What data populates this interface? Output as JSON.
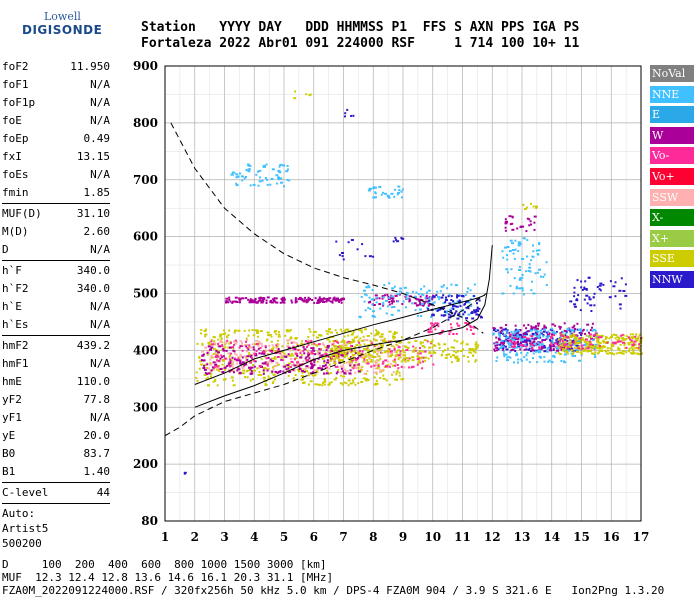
{
  "logo": {
    "line1": "Lowell",
    "line2": "DIGISONDE"
  },
  "header": {
    "row1": "Station   YYYY DAY   DDD HHMMSS P1  FFS S AXN PPS IGA PS",
    "row2": "Fortaleza 2022 Abr01 091 224000 RSF     1 714 100 10+ 11"
  },
  "params": {
    "group1": [
      {
        "key": "foF2",
        "value": "11.950"
      },
      {
        "key": "foF1",
        "value": "N/A"
      },
      {
        "key": "foF1p",
        "value": "N/A"
      },
      {
        "key": "foE",
        "value": "N/A"
      },
      {
        "key": "foEp",
        "value": "0.49"
      },
      {
        "key": "fxI",
        "value": "13.15"
      },
      {
        "key": "foEs",
        "value": "N/A"
      },
      {
        "key": "fmin",
        "value": "1.85"
      }
    ],
    "group2": [
      {
        "key": "MUF(D)",
        "value": "31.10"
      },
      {
        "key": "M(D)",
        "value": "2.60"
      },
      {
        "key": "D",
        "value": "N/A"
      }
    ],
    "group3": [
      {
        "key": "h`F",
        "value": "340.0"
      },
      {
        "key": "h`F2",
        "value": "340.0"
      },
      {
        "key": "h`E",
        "value": "N/A"
      },
      {
        "key": "h`Es",
        "value": "N/A"
      }
    ],
    "group4": [
      {
        "key": "hmF2",
        "value": "439.2"
      },
      {
        "key": "hmF1",
        "value": "N/A"
      },
      {
        "key": "hmE",
        "value": "110.0"
      },
      {
        "key": "yF2",
        "value": "77.8"
      },
      {
        "key": "yF1",
        "value": "N/A"
      },
      {
        "key": "yE",
        "value": "20.0"
      },
      {
        "key": "B0",
        "value": "83.7"
      },
      {
        "key": "B1",
        "value": "1.40"
      }
    ],
    "group5": [
      {
        "key": "C-level",
        "value": "44"
      }
    ],
    "auto": [
      "Auto:",
      "Artist5",
      "500200"
    ]
  },
  "legend": [
    {
      "label": "NoVal",
      "color": "#808080"
    },
    {
      "label": "NNE",
      "color": "#40c0ff"
    },
    {
      "label": "E",
      "color": "#2aa8e8"
    },
    {
      "label": "W",
      "color": "#aa0099"
    },
    {
      "label": "Vo-",
      "color": "#ff2a9a"
    },
    {
      "label": "Vo+",
      "color": "#ff0033"
    },
    {
      "label": "SSW",
      "color": "#ffb0b0"
    },
    {
      "label": "X-",
      "color": "#008800"
    },
    {
      "label": "X+",
      "color": "#99cc44"
    },
    {
      "label": "SSE",
      "color": "#cccc00"
    },
    {
      "label": "NNW",
      "color": "#2a1acc"
    }
  ],
  "footer": {
    "row1": "D     100  200  400  600  800 1000 1500 3000 [km]",
    "row2": "MUF  12.3 12.4 12.8 13.6 14.6 16.1 20.3 31.1 [MHz]",
    "row3": "FZA0M_2022091224000.RSF / 320fx256h 50 kHz 5.0 km / DPS-4 FZA0M 904 / 3.9 S 321.6 E   Ion2Png 1.3.20"
  },
  "chart_data": {
    "type": "scatter",
    "title": "",
    "xlabel": "",
    "ylabel": "",
    "x_ticks": [
      1,
      2,
      3,
      4,
      5,
      6,
      7,
      8,
      9,
      10,
      11,
      12,
      13,
      14,
      15,
      16,
      17
    ],
    "y_ticks": [
      80,
      200,
      300,
      400,
      500,
      600,
      700,
      800,
      900
    ],
    "xlim": [
      1,
      17
    ],
    "ylim_mapping": [
      [
        80,
        0
      ],
      [
        200,
        1
      ],
      [
        300,
        2
      ],
      [
        400,
        3
      ],
      [
        500,
        4
      ],
      [
        600,
        5
      ],
      [
        700,
        6
      ],
      [
        800,
        7
      ],
      [
        900,
        8
      ]
    ],
    "grid": true,
    "clusters": [
      {
        "color": "#aa0099",
        "x": [
          3.0,
          7.0
        ],
        "y": [
          485,
          495
        ],
        "n": 160
      },
      {
        "color": "#aa0099",
        "x": [
          7.8,
          10.0
        ],
        "y": [
          480,
          500
        ],
        "n": 70
      },
      {
        "color": "#40c0ff",
        "x": [
          7.5,
          11.5
        ],
        "y": [
          460,
          520
        ],
        "n": 120
      },
      {
        "color": "#40c0ff",
        "x": [
          3.2,
          5.2
        ],
        "y": [
          690,
          730
        ],
        "n": 60
      },
      {
        "color": "#40c0ff",
        "x": [
          7.8,
          9.0
        ],
        "y": [
          670,
          690
        ],
        "n": 30
      },
      {
        "color": "#40c0ff",
        "x": [
          12.3,
          13.8
        ],
        "y": [
          500,
          600
        ],
        "n": 70
      },
      {
        "color": "#cccc00",
        "x": [
          2.0,
          9.0
        ],
        "y": [
          340,
          440
        ],
        "n": 500
      },
      {
        "color": "#ffb0b0",
        "x": [
          2.2,
          9.0
        ],
        "y": [
          360,
          420
        ],
        "n": 260
      },
      {
        "color": "#aa0099",
        "x": [
          2.2,
          7.5
        ],
        "y": [
          360,
          410
        ],
        "n": 220
      },
      {
        "color": "#ff2a9a",
        "x": [
          2.5,
          10.0
        ],
        "y": [
          370,
          420
        ],
        "n": 160
      },
      {
        "color": "#cccc00",
        "x": [
          6.5,
          11.5
        ],
        "y": [
          380,
          420
        ],
        "n": 220
      },
      {
        "color": "#2a1acc",
        "x": [
          9.8,
          11.6
        ],
        "y": [
          455,
          500
        ],
        "n": 90
      },
      {
        "color": "#ff2a9a",
        "x": [
          9.8,
          11.4
        ],
        "y": [
          430,
          450
        ],
        "n": 40
      },
      {
        "color": "#2a1acc",
        "x": [
          12.0,
          15.0
        ],
        "y": [
          400,
          440
        ],
        "n": 160
      },
      {
        "color": "#aa0099",
        "x": [
          12.0,
          15.5
        ],
        "y": [
          400,
          450
        ],
        "n": 180
      },
      {
        "color": "#40c0ff",
        "x": [
          12.0,
          15.5
        ],
        "y": [
          380,
          440
        ],
        "n": 200
      },
      {
        "color": "#cccc00",
        "x": [
          14.2,
          17.0
        ],
        "y": [
          395,
          430
        ],
        "n": 240
      },
      {
        "color": "#ff2a9a",
        "x": [
          12.5,
          17.0
        ],
        "y": [
          405,
          430
        ],
        "n": 80
      },
      {
        "color": "#2a1acc",
        "x": [
          14.5,
          16.5
        ],
        "y": [
          470,
          530
        ],
        "n": 50
      },
      {
        "color": "#aa0099",
        "x": [
          12.4,
          13.4
        ],
        "y": [
          610,
          640
        ],
        "n": 25
      },
      {
        "color": "#cccc00",
        "x": [
          13.0,
          13.5
        ],
        "y": [
          650,
          660
        ],
        "n": 8
      },
      {
        "color": "#2a1acc",
        "x": [
          7.0,
          7.3
        ],
        "y": [
          810,
          825
        ],
        "n": 5
      },
      {
        "color": "#2a1acc",
        "x": [
          6.7,
          8.0
        ],
        "y": [
          560,
          600
        ],
        "n": 12
      },
      {
        "color": "#2a1acc",
        "x": [
          8.6,
          9.0
        ],
        "y": [
          590,
          600
        ],
        "n": 6
      },
      {
        "color": "#cccc00",
        "x": [
          5.3,
          6.0
        ],
        "y": [
          840,
          860
        ],
        "n": 5
      },
      {
        "color": "#2a1acc",
        "x": [
          1.6,
          1.7
        ],
        "y": [
          180,
          185
        ],
        "n": 2
      }
    ],
    "curves": [
      {
        "style": "dashed",
        "points": [
          [
            1.2,
            800
          ],
          [
            2,
            720
          ],
          [
            3,
            650
          ],
          [
            4,
            605
          ],
          [
            5,
            570
          ],
          [
            6,
            545
          ],
          [
            7,
            528
          ],
          [
            8,
            515
          ],
          [
            9,
            500
          ],
          [
            10,
            480
          ],
          [
            11,
            458
          ],
          [
            11.7,
            430
          ]
        ]
      },
      {
        "style": "dashed",
        "points": [
          [
            1.0,
            250
          ],
          [
            1.5,
            265
          ],
          [
            2,
            285
          ],
          [
            3,
            310
          ],
          [
            4,
            325
          ],
          [
            5,
            340
          ],
          [
            6,
            360
          ],
          [
            7,
            380
          ],
          [
            8,
            400
          ],
          [
            9,
            418
          ],
          [
            10,
            440
          ],
          [
            11,
            470
          ],
          [
            11.8,
            500
          ]
        ]
      },
      {
        "style": "solid",
        "points": [
          [
            2.0,
            300
          ],
          [
            3,
            320
          ],
          [
            4,
            338
          ],
          [
            5,
            360
          ],
          [
            6,
            384
          ],
          [
            7,
            400
          ],
          [
            8,
            410
          ],
          [
            9,
            418
          ],
          [
            10,
            428
          ],
          [
            11,
            440
          ],
          [
            11.5,
            455
          ],
          [
            11.75,
            480
          ],
          [
            11.9,
            525
          ],
          [
            12.0,
            585
          ]
        ]
      },
      {
        "style": "solid",
        "points": [
          [
            2.0,
            340
          ],
          [
            3,
            360
          ],
          [
            4,
            385
          ],
          [
            5,
            400
          ],
          [
            6,
            415
          ],
          [
            7,
            430
          ],
          [
            8,
            445
          ],
          [
            9,
            458
          ],
          [
            10,
            472
          ],
          [
            11,
            485
          ],
          [
            11.5,
            492
          ],
          [
            11.75,
            497
          ]
        ]
      }
    ]
  }
}
